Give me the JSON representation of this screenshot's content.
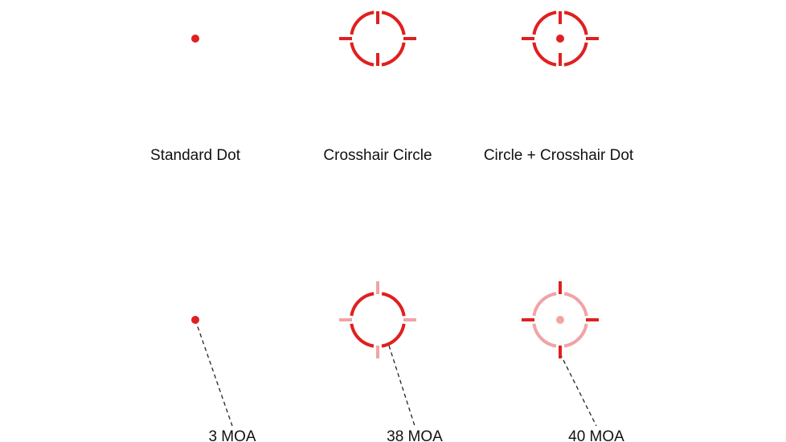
{
  "reticles": [
    {
      "label": "Standard Dot"
    },
    {
      "label": "Crosshair Circle"
    },
    {
      "label": "Circle + Crosshair Dot"
    }
  ],
  "sizes": [
    {
      "label": "3 MOA"
    },
    {
      "label": "38 MOA"
    },
    {
      "label": "40 MOA"
    }
  ]
}
